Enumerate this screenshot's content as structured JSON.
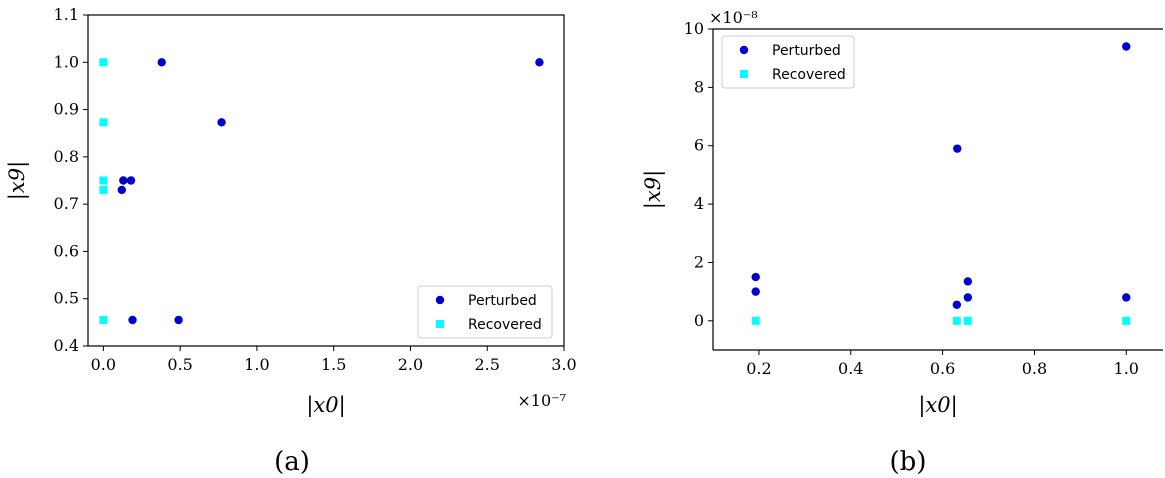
{
  "chart_data": [
    {
      "type": "scatter",
      "caption": "(a)",
      "xlabel": "|x0|",
      "ylabel": "|x9|",
      "x_multiplier": "×10⁻⁷",
      "xlim": [
        -0.1,
        3.0
      ],
      "ylim": [
        0.4,
        1.1
      ],
      "xticks": [
        "0.0",
        "0.5",
        "1.0",
        "1.5",
        "2.0",
        "2.5",
        "3.0"
      ],
      "yticks": [
        "0.4",
        "0.5",
        "0.6",
        "0.7",
        "0.8",
        "0.9",
        "1.0",
        "1.1"
      ],
      "legend_position": "lower right",
      "legend": [
        "Perturbed",
        "Recovered"
      ],
      "series": [
        {
          "name": "Perturbed",
          "marker": "circle",
          "color": "#0000cc",
          "points": [
            [
              0.38,
              1.0
            ],
            [
              2.84,
              1.0
            ],
            [
              0.77,
              0.873
            ],
            [
              0.13,
              0.75
            ],
            [
              0.18,
              0.75
            ],
            [
              0.12,
              0.73
            ],
            [
              0.19,
              0.455
            ],
            [
              0.49,
              0.455
            ]
          ]
        },
        {
          "name": "Recovered",
          "marker": "square",
          "color": "#00ffff",
          "points": [
            [
              0.0,
              1.0
            ],
            [
              0.0,
              0.873
            ],
            [
              0.0,
              0.75
            ],
            [
              0.0,
              0.73
            ],
            [
              0.0,
              0.455
            ]
          ]
        }
      ]
    },
    {
      "type": "scatter",
      "caption": "(b)",
      "xlabel": "|x0|",
      "ylabel": "|x9|",
      "y_multiplier": "×10⁻⁸",
      "xlim": [
        0.1,
        1.08
      ],
      "ylim": [
        -1,
        10
      ],
      "xticks": [
        "0.2",
        "0.4",
        "0.6",
        "0.8",
        "1.0"
      ],
      "yticks": [
        "0",
        "2",
        "4",
        "6",
        "8",
        "10"
      ],
      "legend_position": "upper left",
      "legend": [
        "Perturbed",
        "Recovered"
      ],
      "series": [
        {
          "name": "Perturbed",
          "marker": "circle",
          "color": "#0000cc",
          "points": [
            [
              0.193,
              1.5
            ],
            [
              0.193,
              1.0
            ],
            [
              0.632,
              5.9
            ],
            [
              0.631,
              0.55
            ],
            [
              0.655,
              1.35
            ],
            [
              0.655,
              0.8
            ],
            [
              1.0,
              9.4
            ],
            [
              1.0,
              0.8
            ]
          ]
        },
        {
          "name": "Recovered",
          "marker": "square",
          "color": "#00ffff",
          "points": [
            [
              0.193,
              0.0
            ],
            [
              0.631,
              0.0
            ],
            [
              0.655,
              0.0
            ],
            [
              1.0,
              0.0
            ]
          ]
        }
      ]
    }
  ]
}
